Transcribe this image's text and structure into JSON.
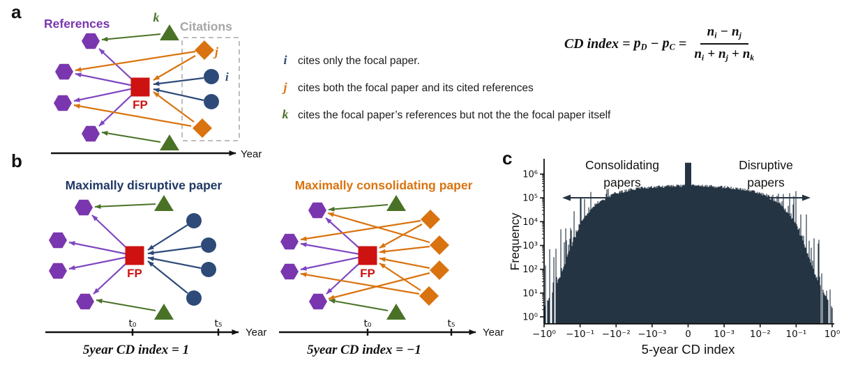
{
  "colors": {
    "purple": "#7a36ae",
    "edge_purple": "#7e46c0",
    "navy": "#2d4a78",
    "orange": "#d9730f",
    "green": "#4a7227",
    "red": "#ce1212",
    "gray": "#a6a6a6",
    "box_gray": "#bdbdbd",
    "title_navy": "#1f3864",
    "hist": "#253443",
    "ink": "#111111"
  },
  "panel_labels": {
    "a": "a",
    "b": "b",
    "c": "c"
  },
  "panel_a": {
    "references": "References",
    "citations": "Citations",
    "k": "k",
    "j": "j",
    "i": "i",
    "fp": "FP",
    "year": "Year"
  },
  "legend": {
    "items": [
      {
        "letter": "i",
        "color": "#2d4a78",
        "text": "cites only the focal paper."
      },
      {
        "letter": "j",
        "color": "#d9730f",
        "text": "cites both the focal paper and its cited references"
      },
      {
        "letter": "k",
        "color": "#4a7227",
        "text": "cites the focal paper’s references but not the the focal paper itself"
      }
    ]
  },
  "formula": {
    "lhs": "CD index",
    "eq1": "=",
    "p1": "p",
    "p1s": "D",
    "op1": "−",
    "p2": "p",
    "p2s": "C",
    "eq2": "=",
    "num_b1": "n",
    "num_s1": "i",
    "num_op": "−",
    "num_b2": "n",
    "num_s2": "j",
    "den_b1": "n",
    "den_s1": "i",
    "den_op1": "+",
    "den_b2": "n",
    "den_s2": "j",
    "den_op2": "+",
    "den_b3": "n",
    "den_s3": "k"
  },
  "panel_b": {
    "left": {
      "title": "Maximally disruptive paper",
      "fp": "FP",
      "t0": "t₀",
      "t5": "t₅",
      "year": "Year",
      "caption": "5year CD index = 1"
    },
    "right": {
      "title": "Maximally consolidating paper",
      "fp": "FP",
      "t0": "t₀",
      "t5": "t₅",
      "year": "Year",
      "caption": "5year CD index = −1"
    }
  },
  "chart_data": {
    "type": "bar",
    "subtype": "histogram",
    "title": "",
    "xlabel": "5-year CD index",
    "ylabel": "Frequency",
    "x_scale": "symlog",
    "y_scale": "log",
    "x_tick_labels": [
      "−10⁰",
      "−10⁻¹",
      "−10⁻²",
      "−10⁻³",
      "0",
      "10⁻³",
      "10⁻²",
      "10⁻¹",
      "10⁰"
    ],
    "y_tick_labels": [
      "10⁰",
      "10¹",
      "10²",
      "10³",
      "10⁴",
      "10⁵",
      "10⁶"
    ],
    "ylim_log": [
      0,
      6
    ],
    "bar_color": "#253443",
    "annotations": [
      {
        "lines": [
          "Consolidating",
          "papers"
        ],
        "side": "left"
      },
      {
        "lines": [
          "Disruptive",
          "papers"
        ],
        "side": "right"
      }
    ],
    "zero_bin_frequency": 3000000,
    "envelope_log10_frequency": [
      [
        0.0,
        0.4
      ],
      [
        0.02,
        0.8
      ],
      [
        0.04,
        1.3
      ],
      [
        0.06,
        1.8
      ],
      [
        0.08,
        2.5
      ],
      [
        0.1,
        3.1
      ],
      [
        0.125,
        3.9
      ],
      [
        0.15,
        4.35
      ],
      [
        0.175,
        4.65
      ],
      [
        0.2,
        4.9
      ],
      [
        0.225,
        5.05
      ],
      [
        0.25,
        5.2
      ],
      [
        0.3,
        5.35
      ],
      [
        0.35,
        5.43
      ],
      [
        0.4,
        5.47
      ],
      [
        0.45,
        5.5
      ],
      [
        0.5,
        5.52
      ],
      [
        0.55,
        5.5
      ],
      [
        0.6,
        5.47
      ],
      [
        0.65,
        5.43
      ],
      [
        0.7,
        5.35
      ],
      [
        0.75,
        5.2
      ],
      [
        0.775,
        5.05
      ],
      [
        0.8,
        4.9
      ],
      [
        0.825,
        4.65
      ],
      [
        0.85,
        4.35
      ],
      [
        0.875,
        3.9
      ],
      [
        0.9,
        3.1
      ],
      [
        0.92,
        2.5
      ],
      [
        0.94,
        1.8
      ],
      [
        0.96,
        1.3
      ],
      [
        0.98,
        0.8
      ],
      [
        1.0,
        0.4
      ]
    ],
    "noise": {
      "seed": 20231,
      "edge_zone": 0.26,
      "max_extra_decades": 2.6,
      "jitter": 0.12,
      "plateau_cap": 5.62
    }
  }
}
